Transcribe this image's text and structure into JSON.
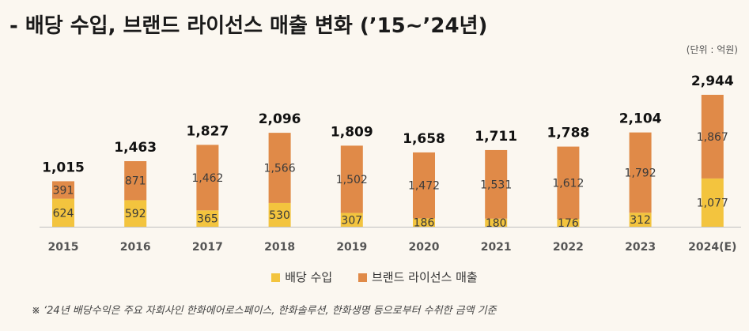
{
  "title": "- 배당 수입, 브랜드 라이선스 매출 변화 (’15~’24년)",
  "unit": "(단위 : 억원)",
  "footnote": "※ ‘24년 배당수익은 주요 자회사인 한화에어로스페이스, 한화솔루션, 한화생명 등으로부터 수취한 금액 기준",
  "colors": {
    "dividend": "#f3c43e",
    "brand": "#e08a48"
  },
  "chart_data": {
    "type": "bar",
    "stacked": true,
    "categories": [
      "2015",
      "2016",
      "2017",
      "2018",
      "2019",
      "2020",
      "2021",
      "2022",
      "2023",
      "2024(E)"
    ],
    "series": [
      {
        "name": "배당 수입",
        "values": [
          624,
          592,
          365,
          530,
          307,
          186,
          180,
          176,
          312,
          1077
        ]
      },
      {
        "name": "브랜드 라이선스 매출",
        "values": [
          391,
          871,
          1462,
          1566,
          1502,
          1472,
          1531,
          1612,
          1792,
          1867
        ]
      }
    ],
    "value_labels": {
      "dividend": [
        "624",
        "592",
        "365",
        "530",
        "307",
        "186",
        "180",
        "176",
        "312",
        "1,077"
      ],
      "brand": [
        "391",
        "871",
        "1,462",
        "1,566",
        "1,502",
        "1,472",
        "1,531",
        "1,612",
        "1,792",
        "1,867"
      ]
    },
    "totals": [
      1015,
      1463,
      1827,
      2096,
      1809,
      1658,
      1711,
      1788,
      2104,
      2944
    ],
    "total_labels": [
      "1,015",
      "1,463",
      "1,827",
      "2,096",
      "1,809",
      "1,658",
      "1,711",
      "1,788",
      "2,104",
      "2,944"
    ],
    "ylim": [
      0,
      3000
    ],
    "legend_position": "bottom"
  }
}
